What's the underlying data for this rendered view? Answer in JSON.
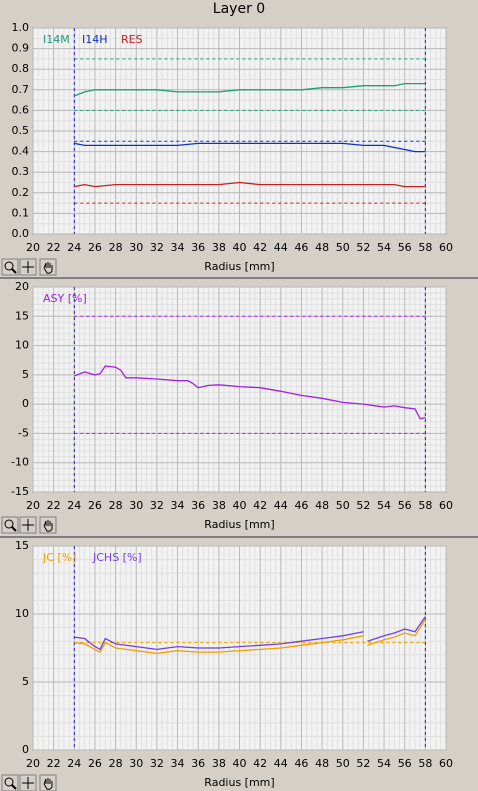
{
  "title": "Layer 0",
  "chart_data": [
    {
      "type": "line",
      "xlabel": "Radius [mm]",
      "x": [
        24,
        25,
        26,
        28,
        30,
        32,
        34,
        36,
        38,
        40,
        42,
        44,
        46,
        48,
        50,
        52,
        54,
        55,
        56,
        57,
        58
      ],
      "series": [
        {
          "name": "I14M",
          "color": "#1a9e78",
          "values": [
            0.67,
            0.69,
            0.7,
            0.7,
            0.7,
            0.7,
            0.69,
            0.69,
            0.69,
            0.7,
            0.7,
            0.7,
            0.7,
            0.71,
            0.71,
            0.72,
            0.72,
            0.72,
            0.73,
            0.73,
            0.73
          ]
        },
        {
          "name": "I14H",
          "color": "#1030c0",
          "values": [
            0.44,
            0.43,
            0.43,
            0.43,
            0.43,
            0.43,
            0.43,
            0.44,
            0.44,
            0.44,
            0.44,
            0.44,
            0.44,
            0.44,
            0.44,
            0.43,
            0.43,
            0.42,
            0.41,
            0.4,
            0.4
          ]
        },
        {
          "name": "RES",
          "color": "#c02020",
          "values": [
            0.23,
            0.24,
            0.23,
            0.24,
            0.24,
            0.24,
            0.24,
            0.24,
            0.24,
            0.25,
            0.24,
            0.24,
            0.24,
            0.24,
            0.24,
            0.24,
            0.24,
            0.24,
            0.23,
            0.23,
            0.23
          ]
        }
      ],
      "hlines": [
        {
          "value": 0.85,
          "color": "#1a9e78"
        },
        {
          "value": 0.6,
          "color": "#1a9e78"
        },
        {
          "value": 0.45,
          "color": "#1030c0"
        },
        {
          "value": 0.15,
          "color": "#c02020"
        }
      ],
      "vlines": [
        24,
        58
      ],
      "vline_color": "#2020c0",
      "xlim": [
        20,
        60
      ],
      "xticks": [
        20,
        22,
        24,
        26,
        28,
        30,
        32,
        34,
        36,
        38,
        40,
        42,
        44,
        46,
        48,
        50,
        52,
        54,
        56,
        58,
        60
      ],
      "ylim": [
        0,
        1
      ],
      "yticks": [
        {
          "value": 0,
          "label": "0.0"
        },
        0.1,
        0.2,
        0.3,
        0.4,
        0.5,
        0.6,
        0.7,
        0.8,
        0.9,
        {
          "value": 1,
          "label": "1.0"
        }
      ],
      "grid": true
    },
    {
      "type": "line",
      "xlabel": "Radius [mm]",
      "x": [
        24,
        25,
        26,
        26.5,
        27,
        28,
        28.5,
        29,
        30,
        32,
        34,
        35,
        35.5,
        36,
        37,
        38,
        40,
        42,
        44,
        46,
        48,
        50,
        52,
        54,
        55,
        56,
        57,
        57.5,
        58
      ],
      "series": [
        {
          "name": "ASY [%]",
          "color": "#a020e0",
          "values": [
            4.8,
            5.5,
            5.0,
            5.2,
            6.5,
            6.3,
            5.8,
            4.5,
            4.5,
            4.3,
            4.0,
            4.0,
            3.5,
            2.8,
            3.2,
            3.3,
            3.0,
            2.8,
            2.2,
            1.5,
            1.0,
            0.3,
            0.0,
            -0.5,
            -0.3,
            -0.6,
            -0.8,
            -2.5,
            -2.3
          ]
        }
      ],
      "hlines": [
        {
          "value": 15,
          "color": "#a020e0"
        },
        {
          "value": -5,
          "color": "#a020e0"
        }
      ],
      "vlines": [
        24,
        58
      ],
      "vline_color": "#2020c0",
      "xlim": [
        20,
        60
      ],
      "xticks": [
        20,
        22,
        24,
        26,
        28,
        30,
        32,
        34,
        36,
        38,
        40,
        42,
        44,
        46,
        48,
        50,
        52,
        54,
        56,
        58,
        60
      ],
      "ylim": [
        -15,
        20
      ],
      "yticks": [
        -15,
        -10,
        -5,
        0,
        5,
        10,
        15,
        20
      ],
      "grid": true
    },
    {
      "type": "line",
      "xlabel": "Radius [mm]",
      "x": [
        24,
        25,
        26,
        26.5,
        27,
        28,
        30,
        32,
        34,
        36,
        38,
        40,
        42,
        44,
        46,
        48,
        50,
        52,
        52.2,
        52.4,
        54,
        55,
        56,
        57,
        58
      ],
      "series": [
        {
          "name": "JC [%]",
          "color": "#f0a000",
          "values": [
            7.9,
            7.8,
            7.4,
            7.2,
            7.9,
            7.5,
            7.3,
            7.1,
            7.3,
            7.2,
            7.2,
            7.3,
            7.4,
            7.5,
            7.7,
            7.9,
            8.1,
            8.4,
            null,
            7.7,
            8.1,
            8.3,
            8.6,
            8.4,
            9.6
          ]
        },
        {
          "name": "JCHS [%]",
          "color": "#7040e0",
          "values": [
            8.3,
            8.2,
            7.6,
            7.4,
            8.2,
            7.8,
            7.6,
            7.4,
            7.6,
            7.5,
            7.5,
            7.6,
            7.7,
            7.8,
            8.0,
            8.2,
            8.4,
            8.7,
            null,
            8.0,
            8.4,
            8.6,
            8.9,
            8.7,
            9.8
          ]
        }
      ],
      "hlines": [
        {
          "value": 7.9,
          "color": "#f0a000"
        }
      ],
      "vlines": [
        24,
        58
      ],
      "vline_color": "#2020c0",
      "xlim": [
        20,
        60
      ],
      "xticks": [
        20,
        22,
        24,
        26,
        28,
        30,
        32,
        34,
        36,
        38,
        40,
        42,
        44,
        46,
        48,
        50,
        52,
        54,
        56,
        58,
        60
      ],
      "ylim": [
        0,
        15
      ],
      "yticks": [
        0,
        5,
        10,
        15
      ],
      "grid": true
    }
  ]
}
